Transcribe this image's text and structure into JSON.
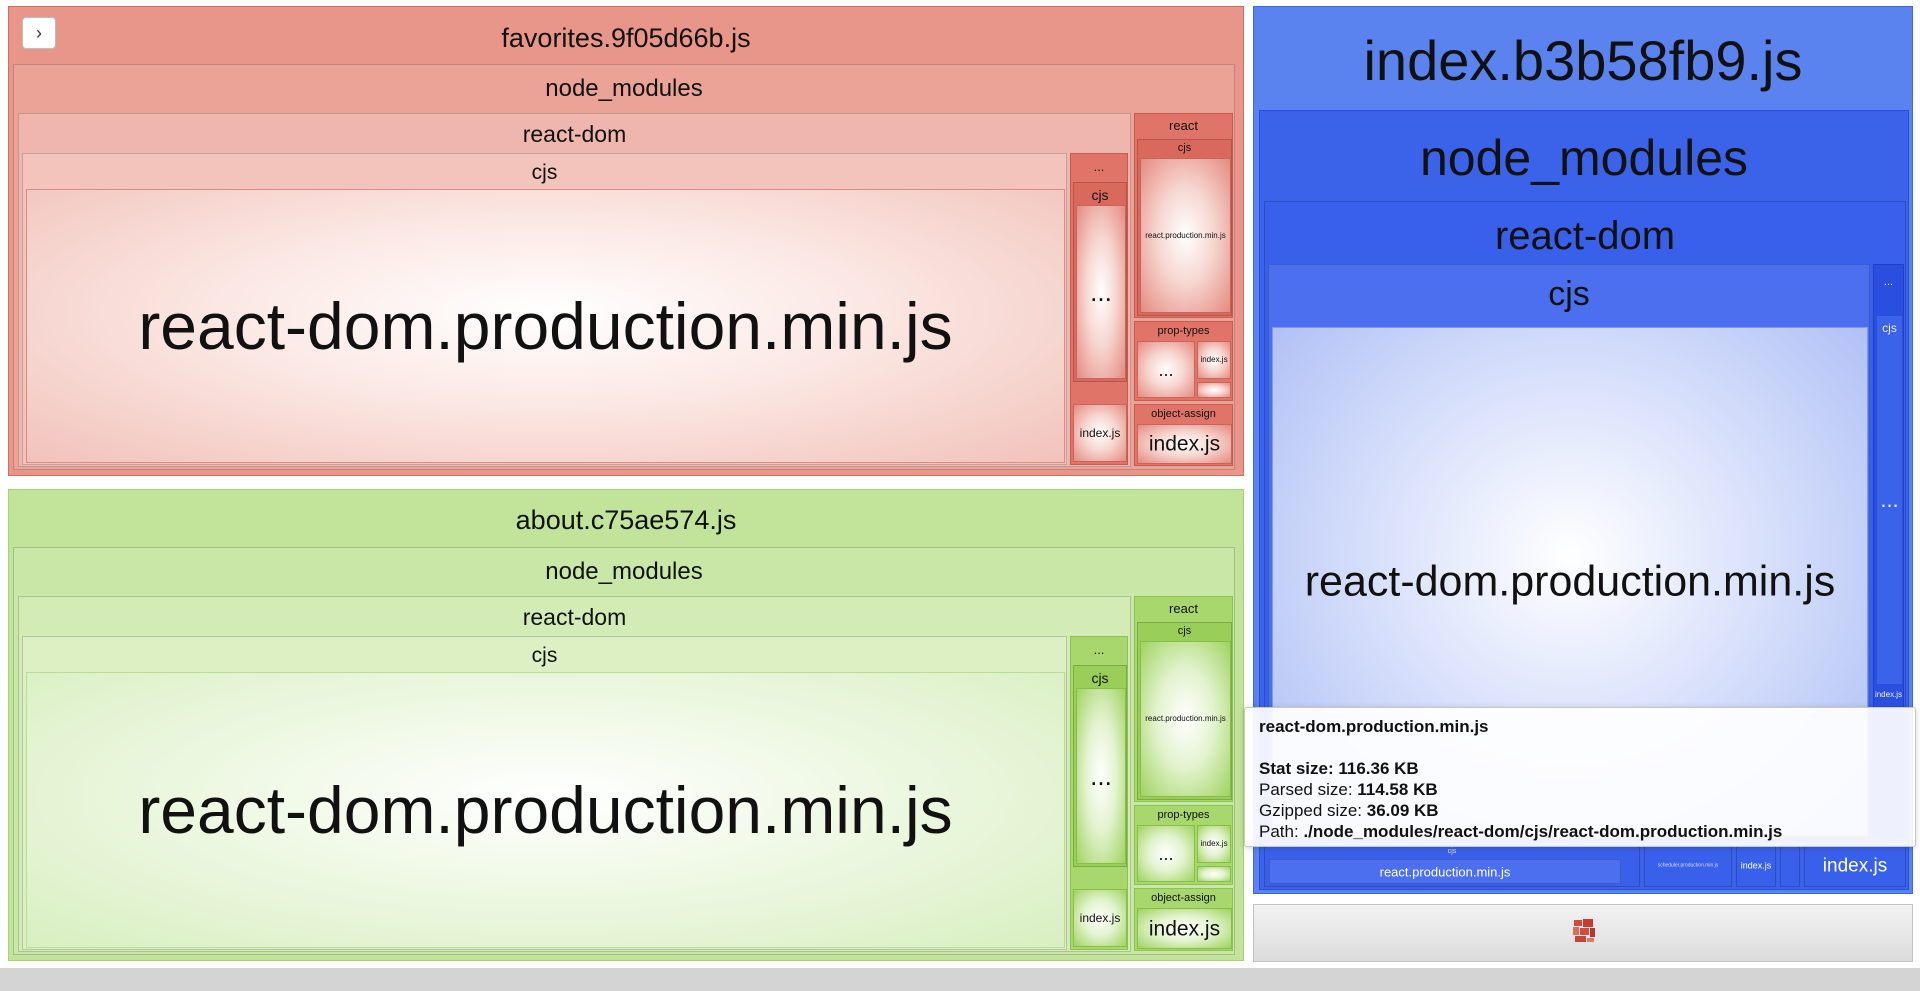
{
  "sidebar_toggle_icon": "chevron-right-icon",
  "favorites": {
    "title": "favorites.9f05d66b.js",
    "node_modules": "node_modules",
    "react_dom": "react-dom",
    "cjs": "cjs",
    "main_leaf": "react-dom.production.min.js",
    "side_ellipsis": "...",
    "side_cjs": "cjs",
    "side_cjs_ellipsis": "...",
    "side_index": "index.js",
    "react": "react",
    "react_cjs": "cjs",
    "react_leaf": "react.production.min.js",
    "prop_types": "prop-types",
    "prop_types_ellipsis": "...",
    "prop_types_index": "index.js",
    "object_assign": "object-assign",
    "object_assign_index": "index.js"
  },
  "about": {
    "title": "about.c75ae574.js",
    "node_modules": "node_modules",
    "react_dom": "react-dom",
    "cjs": "cjs",
    "main_leaf": "react-dom.production.min.js",
    "side_ellipsis": "...",
    "side_cjs": "cjs",
    "side_cjs_ellipsis": "...",
    "side_index": "index.js",
    "react": "react",
    "react_cjs": "cjs",
    "react_leaf": "react.production.min.js",
    "prop_types": "prop-types",
    "prop_types_ellipsis": "...",
    "prop_types_index": "index.js",
    "object_assign": "object-assign",
    "object_assign_index": "index.js"
  },
  "index": {
    "title": "index.b3b58fb9.js",
    "node_modules": "node_modules",
    "react_dom": "react-dom",
    "cjs": "cjs",
    "main_leaf": "react-dom.production.min.js",
    "side_ellipsis": "...",
    "side_cjs": "cjs",
    "side_cjs_ellipsis": "...",
    "side_index": "index.js",
    "react_cjs": "cjs",
    "react_leaf": "react.production.min.js",
    "scheduler_leaf": "scheduler.production.min.js",
    "small_index": "index.js",
    "bottom_index": "index.js"
  },
  "tooltip": {
    "name": "react-dom.production.min.js",
    "stat_label": "Stat size:",
    "stat_value": "116.36 KB",
    "parsed_label": "Parsed size:",
    "parsed_value": "114.58 KB",
    "gzip_label": "Gzipped size:",
    "gzip_value": "36.09 KB",
    "path_label": "Path:",
    "path_value": "./node_modules/react-dom/cjs/react-dom.production.min.js"
  },
  "colors": {
    "favorites": "#e8958a",
    "about": "#c2e39a",
    "index": "#3a63ea"
  }
}
